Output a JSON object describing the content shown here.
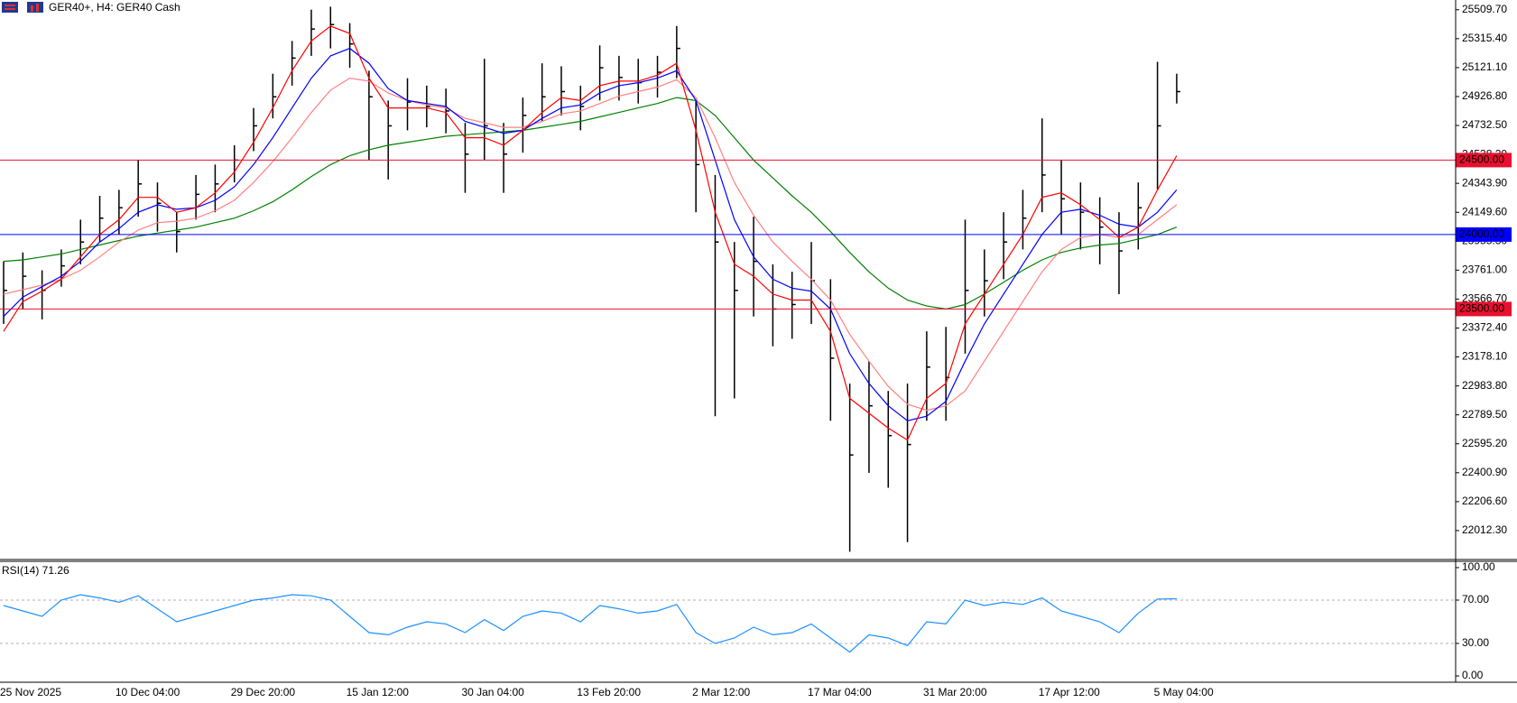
{
  "chart_data": [
    {
      "type": "ohlc",
      "title": "GER40+, H4:  GER40 Cash",
      "color": "#000000",
      "categories": [
        "25 Nov 2025",
        null,
        null,
        null,
        null,
        null,
        "10 Dec 04:00",
        null,
        null,
        null,
        null,
        null,
        "29 Dec 20:00",
        null,
        null,
        null,
        null,
        null,
        "15 Jan 12:00",
        null,
        null,
        null,
        null,
        null,
        "30 Jan 04:00",
        null,
        null,
        null,
        null,
        null,
        "13 Feb 20:00",
        null,
        null,
        null,
        null,
        null,
        "2 Mar 12:00",
        null,
        null,
        null,
        null,
        null,
        "17 Mar 04:00",
        null,
        null,
        null,
        null,
        null,
        "31 Mar 20:00",
        null,
        null,
        null,
        null,
        null,
        "17 Apr 12:00",
        null,
        null,
        null,
        null,
        null,
        "5 May 04:00",
        null
      ],
      "high": [
        23820,
        23880,
        23760,
        23900,
        24100,
        24260,
        24300,
        24500,
        24350,
        24150,
        24400,
        24470,
        24600,
        24850,
        25080,
        25300,
        25510,
        25530,
        25420,
        25100,
        24900,
        25050,
        25000,
        24980,
        24750,
        25180,
        24750,
        24920,
        25150,
        25130,
        25000,
        25270,
        25200,
        25180,
        25200,
        25400,
        24900,
        24400,
        23950,
        24120,
        23800,
        23750,
        23950,
        23700,
        23000,
        23150,
        22950,
        23000,
        23350,
        23380,
        24100,
        23900,
        24150,
        24300,
        24780,
        24500,
        24350,
        24250,
        24150,
        24350,
        25160,
        25080
      ],
      "low": [
        23400,
        23500,
        23430,
        23650,
        23800,
        23950,
        24000,
        24120,
        24020,
        23880,
        24100,
        24150,
        24350,
        24560,
        24780,
        25000,
        25200,
        25250,
        25120,
        24500,
        24370,
        24700,
        24720,
        24680,
        24280,
        24500,
        24280,
        24550,
        24760,
        24800,
        24700,
        24900,
        24900,
        24880,
        24920,
        25050,
        24150,
        22780,
        22900,
        23450,
        23250,
        23300,
        23400,
        22750,
        21870,
        22400,
        22300,
        21935,
        22750,
        22750,
        23200,
        23450,
        23700,
        23900,
        24150,
        24000,
        23900,
        23800,
        23600,
        23900,
        24300,
        24880
      ],
      "close": [
        23625,
        23720,
        23625,
        23790,
        23950,
        24110,
        24180,
        24340,
        24210,
        24020,
        24270,
        24340,
        24500,
        24730,
        24925,
        25185,
        25380,
        25410,
        25280,
        24925,
        24730,
        24890,
        24860,
        24830,
        24540,
        24730,
        24540,
        24800,
        24925,
        24960,
        24860,
        25120,
        25055,
        25020,
        25090,
        25250,
        24470,
        23950,
        23625,
        23820,
        23500,
        23530,
        23690,
        23170,
        22520,
        22850,
        22650,
        22590,
        23110,
        23040,
        23625,
        23690,
        23950,
        24110,
        24400,
        24240,
        24150,
        24050,
        23890,
        24180,
        24730,
        24960
      ],
      "series": [
        {
          "color": "#008000",
          "values": [
            23820,
            23830,
            23850,
            23870,
            23900,
            23930,
            23960,
            23990,
            24010,
            24030,
            24050,
            24080,
            24110,
            24160,
            24220,
            24300,
            24390,
            24470,
            24530,
            24570,
            24600,
            24620,
            24640,
            24660,
            24670,
            24680,
            24690,
            24700,
            24720,
            24740,
            24760,
            24790,
            24820,
            24850,
            24880,
            24920,
            24900,
            24800,
            24650,
            24500,
            24380,
            24260,
            24150,
            24020,
            23880,
            23750,
            23640,
            23560,
            23520,
            23500,
            23530,
            23600,
            23680,
            23760,
            23830,
            23880,
            23910,
            23930,
            23940,
            23970,
            24000,
            24050
          ]
        },
        {
          "color": "#ff8080",
          "values": [
            23600,
            23630,
            23660,
            23700,
            23760,
            23850,
            23950,
            24030,
            24080,
            24090,
            24110,
            24160,
            24230,
            24350,
            24490,
            24650,
            24820,
            24970,
            25050,
            25030,
            24950,
            24900,
            24870,
            24850,
            24780,
            24750,
            24720,
            24720,
            24760,
            24810,
            24830,
            24880,
            24930,
            24960,
            24990,
            25040,
            24920,
            24650,
            24350,
            24130,
            23950,
            23820,
            23700,
            23560,
            23330,
            23150,
            22980,
            22860,
            22820,
            22850,
            22950,
            23150,
            23350,
            23550,
            23750,
            23900,
            23980,
            24000,
            23980,
            24000,
            24100,
            24200
          ]
        },
        {
          "color": "#0000ff",
          "values": [
            23450,
            23580,
            23650,
            23720,
            23820,
            23950,
            24040,
            24150,
            24200,
            24170,
            24180,
            24230,
            24320,
            24470,
            24650,
            24850,
            25050,
            25200,
            25250,
            25150,
            24980,
            24900,
            24880,
            24860,
            24760,
            24720,
            24680,
            24700,
            24780,
            24850,
            24870,
            24950,
            25000,
            25020,
            25050,
            25100,
            24900,
            24500,
            24100,
            23850,
            23700,
            23640,
            23620,
            23500,
            23200,
            23000,
            22850,
            22750,
            22780,
            22880,
            23150,
            23400,
            23600,
            23800,
            24000,
            24150,
            24170,
            24130,
            24070,
            24050,
            24150,
            24300
          ]
        },
        {
          "color": "#ff0000",
          "values": [
            23350,
            23550,
            23620,
            23700,
            23850,
            24000,
            24100,
            24250,
            24250,
            24150,
            24180,
            24280,
            24420,
            24620,
            24850,
            25100,
            25300,
            25400,
            25350,
            25050,
            24850,
            24850,
            24850,
            24820,
            24650,
            24650,
            24600,
            24700,
            24820,
            24920,
            24900,
            25000,
            25030,
            25030,
            25070,
            25150,
            24700,
            24150,
            23800,
            23720,
            23600,
            23560,
            23560,
            23350,
            22900,
            22800,
            22700,
            22620,
            22900,
            23000,
            23400,
            23600,
            23800,
            24000,
            24250,
            24280,
            24200,
            24100,
            23980,
            24050,
            24300,
            24530
          ]
        }
      ],
      "levels": [
        {
          "value": 24500,
          "label": "24500.00",
          "color": "#e8102e"
        },
        {
          "value": 24000,
          "label": "24000.00",
          "color": "#0000ff"
        },
        {
          "value": 23500,
          "label": "23500.00",
          "color": "#e8102e"
        }
      ],
      "ylim": [
        21818,
        25575
      ],
      "yticks": [
        {
          "value": 25509.7,
          "label": "25509.70"
        },
        {
          "value": 25315.4,
          "label": "25315.40"
        },
        {
          "value": 25121.1,
          "label": "25121.10"
        },
        {
          "value": 24926.8,
          "label": "24926.80"
        },
        {
          "value": 24732.5,
          "label": "24732.50"
        },
        {
          "value": 24538.2,
          "label": "24538.20"
        },
        {
          "value": 24343.9,
          "label": "24343.90"
        },
        {
          "value": 24149.6,
          "label": "24149.60"
        },
        {
          "value": 23955.3,
          "label": "23955.30"
        },
        {
          "value": 23761,
          "label": "23761.00"
        },
        {
          "value": 23566.7,
          "label": "23566.70"
        },
        {
          "value": 23372.4,
          "label": "23372.40"
        },
        {
          "value": 23178.1,
          "label": "23178.10"
        },
        {
          "value": 22983.8,
          "label": "22983.80"
        },
        {
          "value": 22789.5,
          "label": "22789.50"
        },
        {
          "value": 22595.2,
          "label": "22595.20"
        },
        {
          "value": 22400.9,
          "label": "22400.90"
        },
        {
          "value": 22206.6,
          "label": "22206.60"
        },
        {
          "value": 22012.3,
          "label": "22012.30"
        }
      ]
    },
    {
      "type": "line",
      "title": "RSI(14) 71.26",
      "grid": true,
      "series": [
        {
          "color": "#1e90ff",
          "values": [
            65,
            60,
            55,
            70,
            75,
            72,
            68,
            74,
            62,
            50,
            55,
            60,
            65,
            70,
            72,
            75,
            74,
            70,
            55,
            40,
            38,
            45,
            50,
            48,
            40,
            52,
            42,
            55,
            60,
            58,
            50,
            65,
            62,
            58,
            60,
            66,
            40,
            30,
            35,
            45,
            38,
            40,
            48,
            35,
            22,
            38,
            35,
            28,
            50,
            48,
            70,
            65,
            68,
            66,
            72,
            60,
            55,
            50,
            40,
            58,
            71,
            71.26
          ]
        }
      ],
      "ylim": [
        -5.8,
        105.8
      ],
      "yticks": [
        {
          "value": 100,
          "label": "100.00"
        },
        {
          "value": 70,
          "label": "70.00"
        },
        {
          "value": 30,
          "label": "30.00"
        },
        {
          "value": 0,
          "label": "0.00"
        }
      ]
    }
  ]
}
